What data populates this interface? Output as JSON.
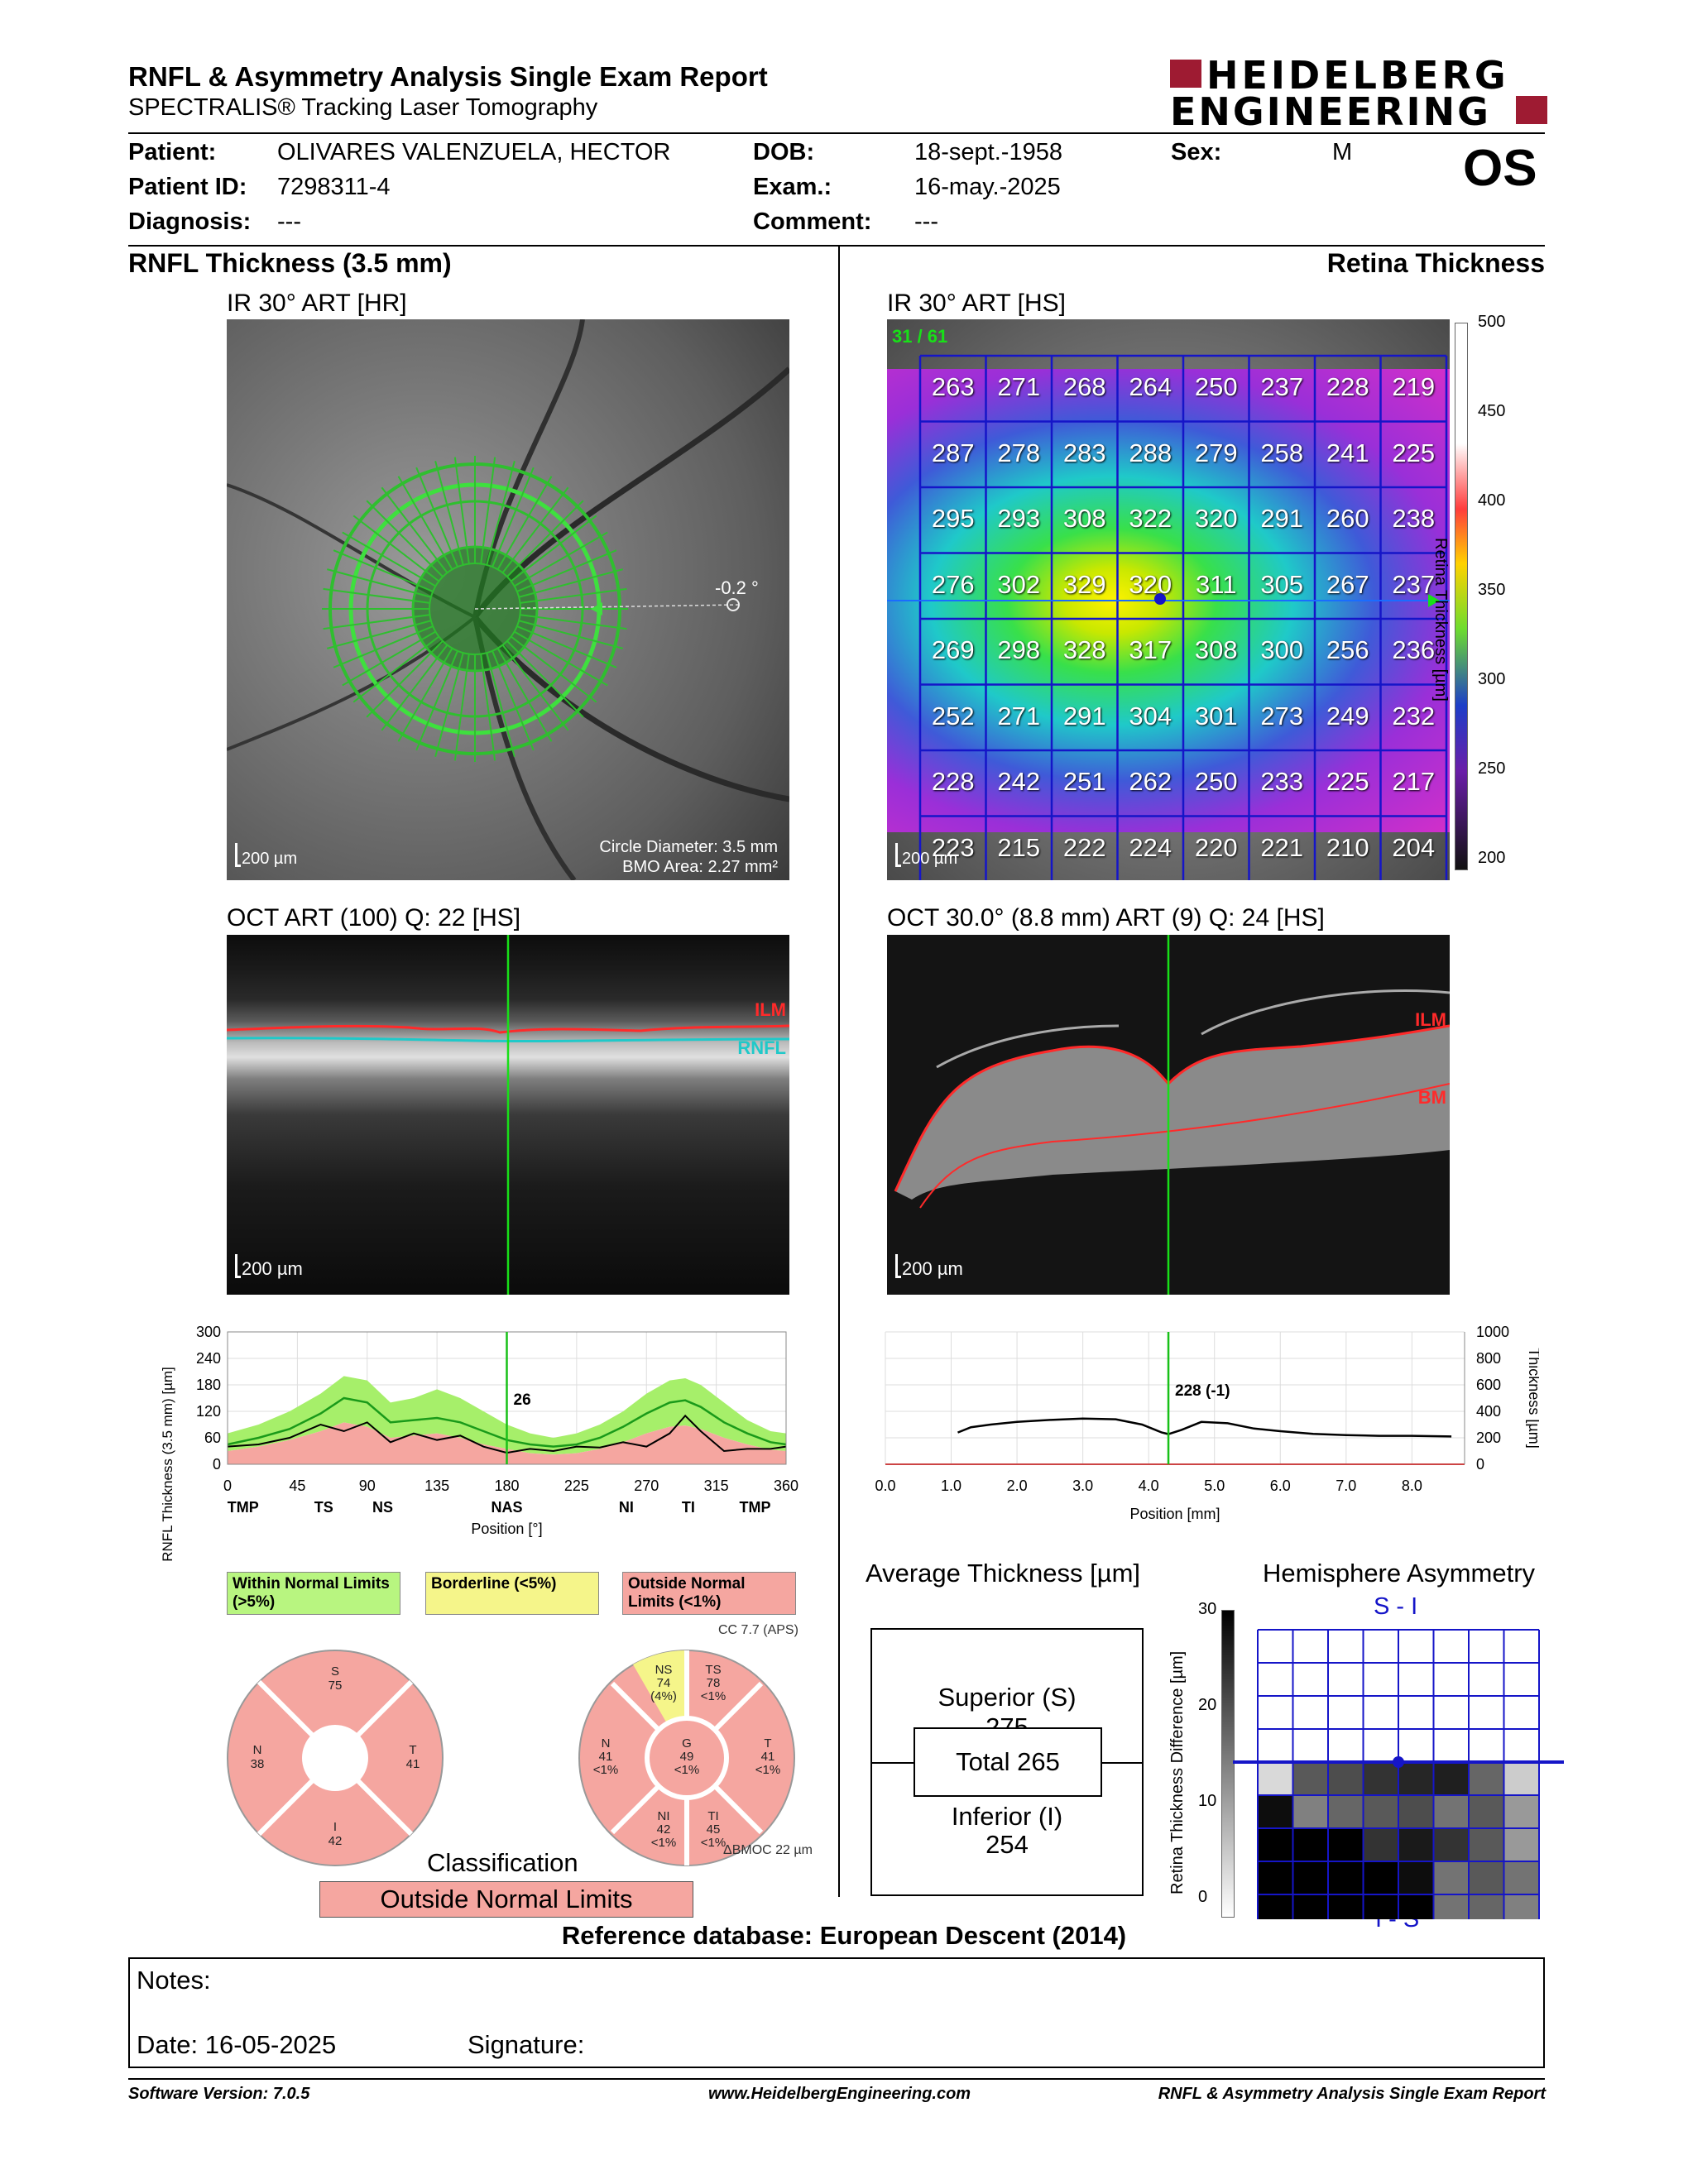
{
  "header": {
    "title": "RNFL & Asymmetry Analysis Single Exam Report",
    "subtitle": "SPECTRALIS® Tracking Laser Tomography",
    "logo_line1": "HEIDELBERG",
    "logo_line2": "ENGINEERING"
  },
  "patient": {
    "patient_label": "Patient:",
    "patient_value": "OLIVARES VALENZUELA, HECTOR",
    "id_label": "Patient ID:",
    "id_value": "7298311-4",
    "diagnosis_label": "Diagnosis:",
    "diagnosis_value": "---",
    "dob_label": "DOB:",
    "dob_value": "18-sept.-1958",
    "exam_label": "Exam.:",
    "exam_value": "16-may.-2025",
    "comment_label": "Comment:",
    "comment_value": "---",
    "sex_label": "Sex:",
    "sex_value": "M",
    "eye": "OS"
  },
  "sections": {
    "left_title": "RNFL Thickness (3.5 mm)",
    "right_title": "Retina Thickness"
  },
  "ir_left": {
    "title": "IR 30° ART [HR]",
    "scale": "200 µm",
    "angle": "-0.2 °",
    "circle_diameter": "Circle Diameter: 3.5 mm",
    "bmo_area": "BMO Area: 2.27 mm²"
  },
  "ir_right": {
    "title": "IR 30° ART [HS]",
    "scale": "200 µm",
    "counter": "31 / 61",
    "colorbar_title": "Retina Thickness [µm]",
    "colorbar_ticks": [
      "500",
      "450",
      "400",
      "350",
      "300",
      "250",
      "200"
    ],
    "grid": [
      [
        "263",
        "271",
        "268",
        "264",
        "250",
        "237",
        "228",
        "219"
      ],
      [
        "287",
        "278",
        "283",
        "288",
        "279",
        "258",
        "241",
        "225"
      ],
      [
        "295",
        "293",
        "308",
        "322",
        "320",
        "291",
        "260",
        "238"
      ],
      [
        "276",
        "302",
        "329",
        "320",
        "311",
        "305",
        "267",
        "237"
      ],
      [
        "269",
        "298",
        "328",
        "317",
        "308",
        "300",
        "256",
        "236"
      ],
      [
        "252",
        "271",
        "291",
        "304",
        "301",
        "273",
        "249",
        "232"
      ],
      [
        "228",
        "242",
        "251",
        "262",
        "250",
        "233",
        "225",
        "217"
      ],
      [
        "223",
        "215",
        "222",
        "224",
        "220",
        "221",
        "210",
        "204"
      ]
    ]
  },
  "oct_left": {
    "title": "OCT ART (100) Q: 22 [HS]",
    "scale": "200 µm",
    "ilm": "ILM",
    "rnfl": "RNFL"
  },
  "oct_right": {
    "title": "OCT 30.0° (8.8 mm) ART (9) Q: 24 [HS]",
    "scale": "200 µm",
    "ilm": "ILM",
    "bm": "BM"
  },
  "chart_data": [
    {
      "type": "area",
      "title": "",
      "ylabel": "RNFL Thickness (3.5 mm) [µm]",
      "xlabel": "Position [°]",
      "ylim": [
        0,
        300
      ],
      "xlim": [
        0,
        360
      ],
      "yticks": [
        "0",
        "60",
        "120",
        "180",
        "240",
        "300"
      ],
      "xticks": [
        "0",
        "45",
        "90",
        "135",
        "180",
        "225",
        "270",
        "315",
        "360"
      ],
      "sector_labels": [
        "TMP",
        "TS",
        "NS",
        "NAS",
        "NI",
        "TI",
        "TMP"
      ],
      "sector_positions": [
        10,
        62,
        100,
        180,
        257,
        297,
        340
      ],
      "cursor_x": 180,
      "cursor_label": "26",
      "x": [
        0,
        20,
        40,
        60,
        75,
        90,
        105,
        120,
        135,
        150,
        165,
        180,
        195,
        210,
        225,
        240,
        255,
        270,
        285,
        295,
        305,
        320,
        335,
        350,
        360
      ],
      "normal_upper": [
        70,
        90,
        120,
        160,
        200,
        190,
        140,
        150,
        170,
        150,
        120,
        90,
        70,
        60,
        70,
        90,
        120,
        160,
        190,
        195,
        180,
        140,
        100,
        75,
        70
      ],
      "normal_lower": [
        30,
        40,
        55,
        75,
        95,
        85,
        60,
        65,
        70,
        60,
        45,
        35,
        25,
        22,
        25,
        35,
        50,
        70,
        85,
        88,
        80,
        60,
        45,
        33,
        30
      ],
      "normal_mean": [
        45,
        60,
        80,
        115,
        150,
        140,
        95,
        100,
        105,
        95,
        75,
        55,
        45,
        40,
        45,
        60,
        85,
        115,
        140,
        145,
        130,
        95,
        70,
        50,
        45
      ],
      "patient": [
        40,
        45,
        60,
        90,
        75,
        95,
        50,
        70,
        55,
        65,
        40,
        26,
        35,
        30,
        40,
        38,
        50,
        40,
        70,
        110,
        75,
        30,
        35,
        35,
        40
      ]
    },
    {
      "type": "line",
      "title": "",
      "ylabel": "Thickness [µm]",
      "xlabel": "Position [mm]",
      "ylim": [
        0,
        1000
      ],
      "xlim": [
        0,
        8.8
      ],
      "yticks": [
        "0",
        "200",
        "400",
        "600",
        "800",
        "1000"
      ],
      "xticks": [
        "0.0",
        "1.0",
        "2.0",
        "3.0",
        "4.0",
        "5.0",
        "6.0",
        "7.0",
        "8.0"
      ],
      "cursor_x": 4.3,
      "cursor_label": "228 (-1)",
      "x": [
        1.1,
        1.3,
        1.6,
        2.0,
        2.5,
        3.0,
        3.5,
        3.9,
        4.2,
        4.3,
        4.5,
        4.8,
        5.2,
        5.6,
        6.0,
        6.5,
        7.0,
        7.5,
        8.0,
        8.6
      ],
      "values": [
        240,
        280,
        300,
        320,
        335,
        345,
        340,
        300,
        240,
        228,
        260,
        320,
        310,
        270,
        250,
        230,
        220,
        215,
        215,
        210
      ]
    }
  ],
  "legend": {
    "within": "Within Normal Limits (>5%)",
    "borderline": "Borderline (<5%)",
    "outside": "Outside Normal Limits (<1%)"
  },
  "sectors_4": {
    "S_label": "S",
    "S_value": "75",
    "N_label": "N",
    "N_value": "38",
    "T_label": "T",
    "T_value": "41",
    "I_label": "I",
    "I_value": "42"
  },
  "sectors_6": {
    "cc": "CC 7.7 (APS)",
    "NS": [
      "NS",
      "74",
      "(4%)"
    ],
    "TS": [
      "TS",
      "78",
      "<1%"
    ],
    "N": [
      "N",
      "41",
      "<1%"
    ],
    "G": [
      "G",
      "49",
      "<1%"
    ],
    "T": [
      "T",
      "41",
      "<1%"
    ],
    "NI": [
      "NI",
      "42",
      "<1%"
    ],
    "TI": [
      "TI",
      "45",
      "<1%"
    ],
    "bmo": "ΔBMOC 22 µm"
  },
  "classification": {
    "title": "Classification",
    "value": "Outside Normal Limits"
  },
  "average": {
    "title": "Average Thickness [µm]",
    "superior_label": "Superior (S)",
    "superior_value": "275",
    "total": "Total 265",
    "inferior_label": "Inferior (I)",
    "inferior_value": "254"
  },
  "asymmetry": {
    "title": "Hemisphere Asymmetry",
    "top_label": "S - I",
    "bottom_label": "I - S",
    "axis_title": "Retina Thickness Difference [µm]",
    "ticks": [
      "30",
      "20",
      "10",
      "0"
    ],
    "lower_cells": [
      [
        0.85,
        0.35,
        0.3,
        0.2,
        0.15,
        0.12,
        0.4,
        0.8
      ],
      [
        0.05,
        0.5,
        0.4,
        0.35,
        0.3,
        0.45,
        0.35,
        0.6
      ],
      [
        0.0,
        0.0,
        0.0,
        0.2,
        0.1,
        0.2,
        0.35,
        0.6
      ],
      [
        0.0,
        0.0,
        0.0,
        0.0,
        0.05,
        0.45,
        0.35,
        0.45
      ],
      [
        0.0,
        0.0,
        0.0,
        0.0,
        0.0,
        0.45,
        0.4,
        0.5
      ]
    ]
  },
  "reference_db": "Reference database: European Descent (2014)",
  "notes": {
    "notes_label": "Notes:",
    "date": "Date: 16-05-2025",
    "signature": "Signature:"
  },
  "footer": {
    "software": "Software Version: 7.0.5",
    "website": "www.HeidelbergEngineering.com",
    "report": "RNFL & Asymmetry Analysis Single Exam Report"
  }
}
